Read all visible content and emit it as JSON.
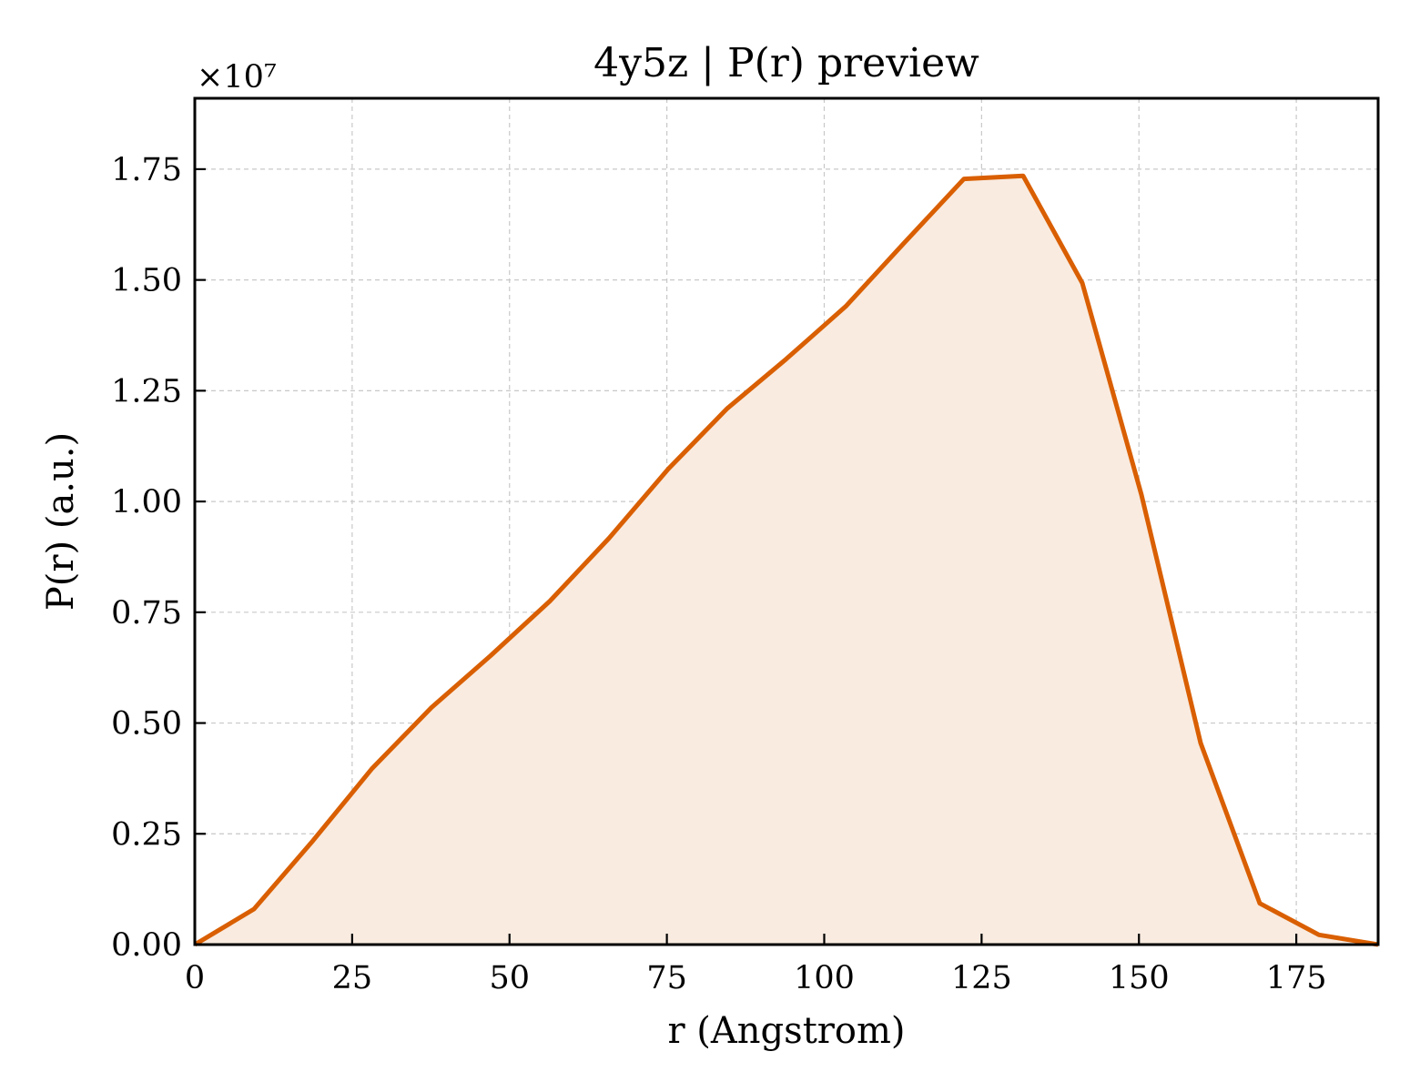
{
  "chart_data": {
    "type": "area",
    "title": "4y5z | P(r) preview",
    "xlabel": "r (Angstrom)",
    "ylabel": "P(r) (a.u.)",
    "y_offset_label": "×10⁷",
    "xlim": [
      0,
      188
    ],
    "ylim": [
      0,
      1.91
    ],
    "x_ticks": [
      0,
      25,
      50,
      75,
      100,
      125,
      150,
      175
    ],
    "y_ticks": [
      0.0,
      0.25,
      0.5,
      0.75,
      1.0,
      1.25,
      1.5,
      1.75
    ],
    "x_tick_labels": [
      "0",
      "25",
      "50",
      "75",
      "100",
      "125",
      "150",
      "175"
    ],
    "y_tick_labels": [
      "0.00",
      "0.25",
      "0.50",
      "0.75",
      "1.00",
      "1.25",
      "1.50",
      "1.75"
    ],
    "grid": true,
    "line_color": "#d95f02",
    "fill_color": "#f9ebe0",
    "series": [
      {
        "x": [
          0,
          9.4,
          18.8,
          28.2,
          37.6,
          47.0,
          56.4,
          65.8,
          75.2,
          84.6,
          94.0,
          103.4,
          112.8,
          122.2,
          131.6,
          141.0,
          150.4,
          159.8,
          169.2,
          178.6,
          188.0
        ],
        "y": [
          0.0,
          0.08,
          0.235,
          0.398,
          0.535,
          0.652,
          0.775,
          0.917,
          1.073,
          1.21,
          1.322,
          1.44,
          1.585,
          1.728,
          1.735,
          1.493,
          1.015,
          0.455,
          0.093,
          0.022,
          0.0
        ]
      }
    ]
  }
}
